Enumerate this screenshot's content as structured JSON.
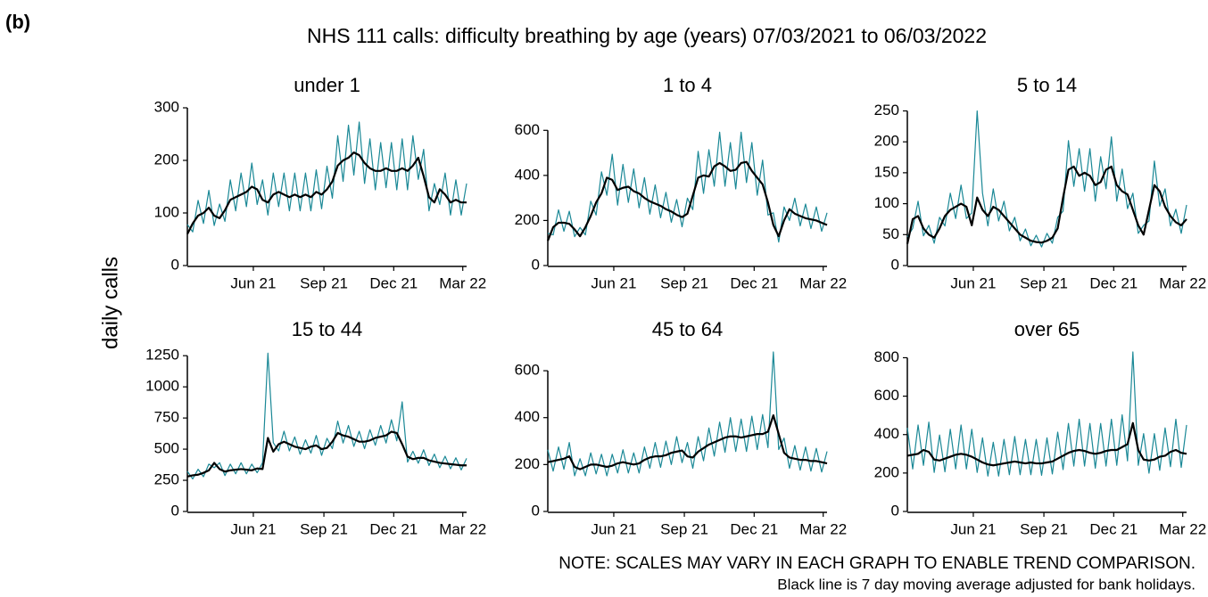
{
  "label": "(b)",
  "title": "NHS 111 calls: difficulty breathing by age (years) 07/03/2021 to 06/03/2022",
  "y_label": "daily calls",
  "notes": [
    "NOTE: SCALES MAY VARY IN EACH GRAPH TO ENABLE TREND COMPARISON.",
    "Black line is 7 day moving average adjusted for bank holidays."
  ],
  "chart_data": [
    {
      "type": "line",
      "title": "under 1",
      "x": [
        0,
        7,
        14,
        21,
        28,
        35,
        42,
        49,
        56,
        63,
        70,
        77,
        84,
        91,
        98,
        105,
        112,
        119,
        126,
        133,
        140,
        147,
        154,
        161,
        168,
        175,
        182,
        189,
        196,
        203,
        210,
        217,
        224,
        231,
        238,
        245,
        252,
        259,
        266,
        273,
        280,
        287,
        294,
        301,
        308,
        315,
        322,
        329,
        336,
        343,
        350,
        357,
        364
      ],
      "xlim": [
        0,
        364
      ],
      "xticks": [
        {
          "value": 86,
          "label": "Jun 21"
        },
        {
          "value": 178,
          "label": "Sep 21"
        },
        {
          "value": 269,
          "label": "Dec 21"
        },
        {
          "value": 359,
          "label": "Mar 22"
        }
      ],
      "ylim": [
        0,
        300
      ],
      "yticks": [
        0,
        100,
        200,
        300
      ],
      "series": [
        {
          "color": "#1a8896",
          "values": [
            78,
            64,
            124,
            80,
            143,
            76,
            117,
            84,
            163,
            104,
            176,
            112,
            195,
            116,
            163,
            96,
            176,
            112,
            176,
            104,
            176,
            104,
            176,
            104,
            182,
            108,
            189,
            128,
            247,
            160,
            267,
            172,
            273,
            156,
            241,
            144,
            234,
            148,
            234,
            144,
            241,
            144,
            247,
            164,
            221,
            104,
            156,
            116,
            176,
            96,
            163,
            96,
            156
          ]
        },
        {
          "color": "#000000",
          "values": [
            60,
            80,
            95,
            100,
            110,
            95,
            90,
            105,
            125,
            130,
            135,
            140,
            150,
            145,
            125,
            120,
            135,
            140,
            135,
            130,
            135,
            130,
            135,
            130,
            140,
            135,
            145,
            160,
            190,
            200,
            205,
            215,
            210,
            195,
            185,
            180,
            180,
            185,
            180,
            180,
            185,
            180,
            190,
            205,
            170,
            130,
            120,
            145,
            135,
            120,
            125,
            120,
            120
          ]
        }
      ]
    },
    {
      "type": "line",
      "title": "1 to 4",
      "x": [
        0,
        7,
        14,
        21,
        28,
        35,
        42,
        49,
        56,
        63,
        70,
        77,
        84,
        91,
        98,
        105,
        112,
        119,
        126,
        133,
        140,
        147,
        154,
        161,
        168,
        175,
        182,
        189,
        196,
        203,
        210,
        217,
        224,
        231,
        238,
        245,
        252,
        259,
        266,
        273,
        280,
        287,
        294,
        301,
        308,
        315,
        322,
        329,
        336,
        343,
        350,
        357,
        364
      ],
      "xlim": [
        0,
        364
      ],
      "xticks": [
        {
          "value": 86,
          "label": "Jun 21"
        },
        {
          "value": 178,
          "label": "Sep 21"
        },
        {
          "value": 269,
          "label": "Dec 21"
        },
        {
          "value": 359,
          "label": "Mar 22"
        }
      ],
      "ylim": [
        0,
        700
      ],
      "yticks": [
        0,
        200,
        400,
        600
      ],
      "series": [
        {
          "color": "#1a8896",
          "values": [
            143,
            136,
            247,
            152,
            241,
            128,
            169,
            136,
            286,
            224,
            416,
            312,
            494,
            268,
            449,
            280,
            429,
            256,
            390,
            228,
            358,
            212,
            325,
            192,
            293,
            172,
            299,
            248,
            507,
            320,
            514,
            352,
            592,
            352,
            546,
            340,
            592,
            368,
            546,
            312,
            468,
            224,
            234,
            104,
            260,
            200,
            299,
            176,
            273,
            164,
            260,
            152,
            234
          ]
        },
        {
          "color": "#000000",
          "values": [
            110,
            170,
            190,
            190,
            185,
            160,
            130,
            170,
            220,
            280,
            320,
            390,
            380,
            335,
            345,
            350,
            330,
            320,
            300,
            285,
            275,
            265,
            250,
            240,
            225,
            215,
            230,
            310,
            390,
            400,
            395,
            440,
            455,
            440,
            420,
            425,
            455,
            460,
            420,
            390,
            360,
            280,
            180,
            130,
            200,
            250,
            230,
            220,
            210,
            205,
            200,
            190,
            180
          ]
        }
      ]
    },
    {
      "type": "line",
      "title": "5 to 14",
      "x": [
        0,
        7,
        14,
        21,
        28,
        35,
        42,
        49,
        56,
        63,
        70,
        77,
        84,
        91,
        98,
        105,
        112,
        119,
        126,
        133,
        140,
        147,
        154,
        161,
        168,
        175,
        182,
        189,
        196,
        203,
        210,
        217,
        224,
        231,
        238,
        245,
        252,
        259,
        266,
        273,
        280,
        287,
        294,
        301,
        308,
        315,
        322,
        329,
        336,
        343,
        350,
        357,
        364
      ],
      "xlim": [
        0,
        364
      ],
      "xticks": [
        {
          "value": 86,
          "label": "Jun 21"
        },
        {
          "value": 178,
          "label": "Sep 21"
        },
        {
          "value": 269,
          "label": "Dec 21"
        },
        {
          "value": 359,
          "label": "Mar 22"
        }
      ],
      "ylim": [
        0,
        255
      ],
      "yticks": [
        0,
        50,
        100,
        150,
        200,
        250
      ],
      "series": [
        {
          "color": "#1a8896",
          "values": [
            46,
            60,
            104,
            48,
            65,
            36,
            78,
            64,
            117,
            76,
            130,
            76,
            85,
            250,
            117,
            64,
            124,
            72,
            104,
            56,
            78,
            40,
            59,
            32,
            49,
            30,
            52,
            36,
            78,
            88,
            202,
            128,
            189,
            120,
            189,
            104,
            176,
            124,
            208,
            104,
            156,
            92,
            117,
            52,
            65,
            72,
            169,
            96,
            124,
            64,
            91,
            52,
            98
          ]
        },
        {
          "color": "#000000",
          "values": [
            35,
            75,
            80,
            60,
            50,
            45,
            60,
            80,
            90,
            95,
            100,
            95,
            65,
            110,
            90,
            80,
            95,
            90,
            80,
            70,
            60,
            50,
            45,
            40,
            38,
            37,
            40,
            45,
            60,
            110,
            155,
            160,
            145,
            150,
            145,
            130,
            135,
            155,
            160,
            130,
            120,
            115,
            90,
            65,
            50,
            90,
            130,
            120,
            95,
            80,
            70,
            65,
            75
          ]
        }
      ]
    },
    {
      "type": "line",
      "title": "15 to 44",
      "x": [
        0,
        7,
        14,
        21,
        28,
        35,
        42,
        49,
        56,
        63,
        70,
        77,
        84,
        91,
        98,
        105,
        112,
        119,
        126,
        133,
        140,
        147,
        154,
        161,
        168,
        175,
        182,
        189,
        196,
        203,
        210,
        217,
        224,
        231,
        238,
        245,
        252,
        259,
        266,
        273,
        280,
        287,
        294,
        301,
        308,
        315,
        322,
        329,
        336,
        343,
        350,
        357,
        364
      ],
      "xlim": [
        0,
        364
      ],
      "xticks": [
        {
          "value": 86,
          "label": "Jun 21"
        },
        {
          "value": 178,
          "label": "Sep 21"
        },
        {
          "value": 269,
          "label": "Dec 21"
        },
        {
          "value": 359,
          "label": "Mar 22"
        }
      ],
      "ylim": [
        0,
        1280
      ],
      "yticks": [
        0,
        250,
        500,
        750,
        1000,
        1250
      ],
      "series": [
        {
          "color": "#1a8896",
          "values": [
            322,
            261,
            339,
            279,
            380,
            351,
            391,
            288,
            380,
            302,
            391,
            302,
            380,
            311,
            391,
            1270,
            552,
            486,
            644,
            486,
            598,
            459,
            575,
            468,
            610,
            450,
            587,
            504,
            725,
            549,
            690,
            522,
            644,
            504,
            656,
            531,
            690,
            549,
            736,
            567,
            880,
            396,
            483,
            387,
            495,
            369,
            460,
            351,
            443,
            342,
            431,
            333,
            426
          ]
        },
        {
          "color": "#000000",
          "values": [
            280,
            290,
            295,
            310,
            330,
            390,
            340,
            320,
            330,
            335,
            340,
            335,
            330,
            345,
            340,
            590,
            480,
            540,
            560,
            540,
            520,
            510,
            500,
            520,
            530,
            500,
            510,
            560,
            630,
            610,
            600,
            580,
            560,
            560,
            570,
            590,
            600,
            610,
            640,
            630,
            540,
            440,
            420,
            430,
            430,
            410,
            400,
            390,
            385,
            380,
            375,
            370,
            370
          ]
        }
      ]
    },
    {
      "type": "line",
      "title": "45 to 64",
      "x": [
        0,
        7,
        14,
        21,
        28,
        35,
        42,
        49,
        56,
        63,
        70,
        77,
        84,
        91,
        98,
        105,
        112,
        119,
        126,
        133,
        140,
        147,
        154,
        161,
        168,
        175,
        182,
        189,
        196,
        203,
        210,
        217,
        224,
        231,
        238,
        245,
        252,
        259,
        266,
        273,
        280,
        287,
        294,
        301,
        308,
        315,
        322,
        329,
        336,
        343,
        350,
        357,
        364
      ],
      "xlim": [
        0,
        364
      ],
      "xticks": [
        {
          "value": 86,
          "label": "Jun 21"
        },
        {
          "value": 178,
          "label": "Sep 21"
        },
        {
          "value": 269,
          "label": "Dec 21"
        },
        {
          "value": 359,
          "label": "Mar 22"
        }
      ],
      "ylim": [
        0,
        680
      ],
      "yticks": [
        0,
        200,
        400,
        600
      ],
      "series": [
        {
          "color": "#1a8896",
          "values": [
            263,
            172,
            275,
            180,
            294,
            152,
            225,
            152,
            250,
            160,
            244,
            152,
            244,
            164,
            263,
            164,
            250,
            164,
            275,
            184,
            294,
            188,
            300,
            200,
            319,
            208,
            294,
            184,
            319,
            216,
            356,
            236,
            381,
            252,
            400,
            256,
            394,
            256,
            406,
            264,
            413,
            272,
            680,
            264,
            313,
            184,
            281,
            176,
            275,
            172,
            269,
            168,
            256
          ]
        },
        {
          "color": "#000000",
          "values": [
            210,
            215,
            220,
            225,
            235,
            190,
            180,
            190,
            200,
            200,
            195,
            190,
            195,
            205,
            210,
            205,
            200,
            205,
            220,
            230,
            235,
            235,
            240,
            250,
            255,
            260,
            235,
            230,
            255,
            270,
            285,
            295,
            305,
            315,
            320,
            320,
            315,
            320,
            325,
            330,
            330,
            340,
            410,
            330,
            250,
            230,
            225,
            220,
            220,
            215,
            215,
            210,
            205
          ]
        }
      ]
    },
    {
      "type": "line",
      "title": "over 65",
      "x": [
        0,
        7,
        14,
        21,
        28,
        35,
        42,
        49,
        56,
        63,
        70,
        77,
        84,
        91,
        98,
        105,
        112,
        119,
        126,
        133,
        140,
        147,
        154,
        161,
        168,
        175,
        182,
        189,
        196,
        203,
        210,
        217,
        224,
        231,
        238,
        245,
        252,
        259,
        266,
        273,
        280,
        287,
        294,
        301,
        308,
        315,
        322,
        329,
        336,
        343,
        350,
        357,
        364
      ],
      "xlim": [
        0,
        364
      ],
      "xticks": [
        {
          "value": 86,
          "label": "Jun 21"
        },
        {
          "value": 178,
          "label": "Sep 21"
        },
        {
          "value": 269,
          "label": "Dec 21"
        },
        {
          "value": 359,
          "label": "Mar 22"
        }
      ],
      "ylim": [
        0,
        830
      ],
      "yticks": [
        0,
        200,
        400,
        600,
        800
      ],
      "series": [
        {
          "color": "#1a8896",
          "values": [
            435,
            221,
            450,
            240,
            465,
            203,
            398,
            206,
            428,
            221,
            450,
            221,
            428,
            203,
            383,
            184,
            360,
            184,
            375,
            191,
            390,
            191,
            375,
            191,
            375,
            188,
            383,
            195,
            413,
            218,
            458,
            236,
            480,
            236,
            458,
            225,
            458,
            236,
            480,
            240,
            503,
            263,
            830,
            240,
            405,
            199,
            405,
            214,
            435,
            233,
            480,
            229,
            450
          ]
        },
        {
          "color": "#000000",
          "values": [
            290,
            295,
            300,
            320,
            310,
            270,
            265,
            275,
            285,
            295,
            300,
            295,
            285,
            270,
            255,
            245,
            240,
            245,
            250,
            255,
            260,
            255,
            250,
            255,
            250,
            250,
            255,
            260,
            275,
            290,
            305,
            315,
            320,
            315,
            305,
            300,
            305,
            315,
            320,
            320,
            335,
            350,
            460,
            320,
            270,
            265,
            270,
            285,
            290,
            310,
            320,
            305,
            300
          ]
        }
      ]
    }
  ]
}
